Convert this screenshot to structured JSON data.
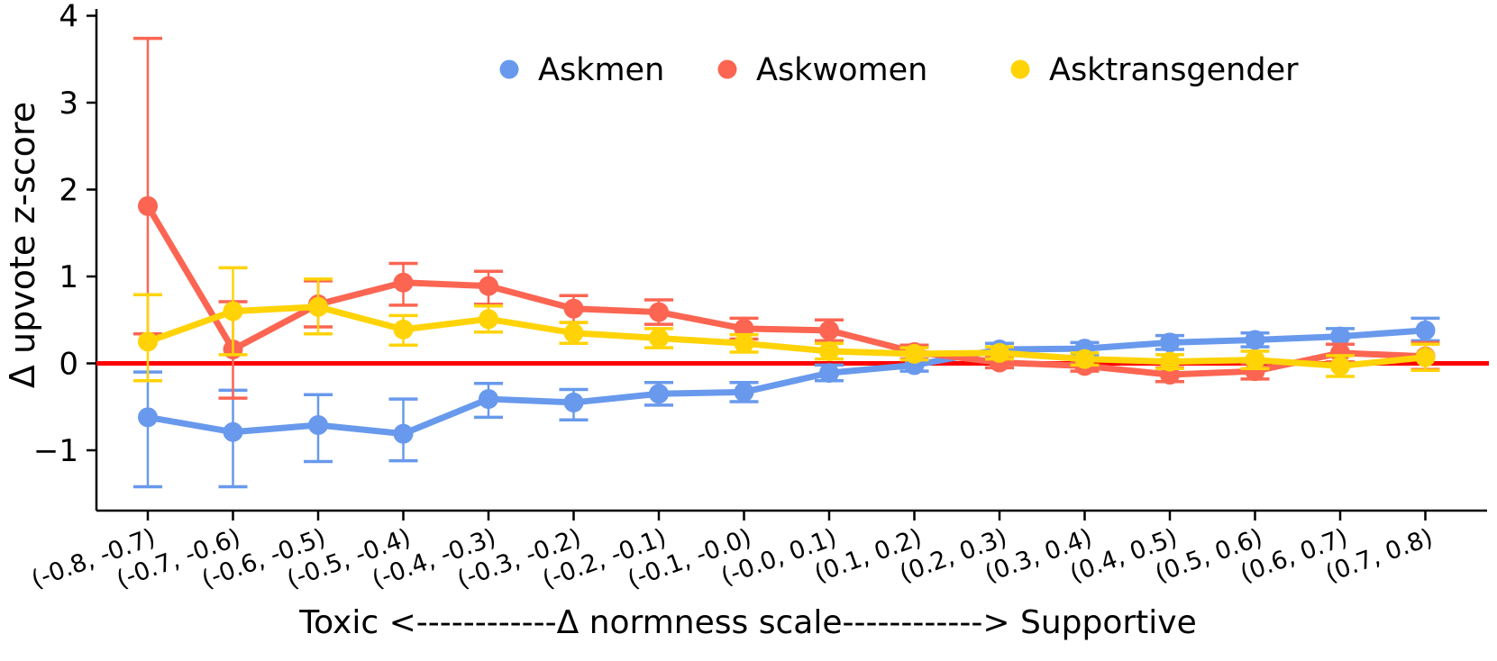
{
  "figure": {
    "ylabel": "Δ upvote z-score",
    "xlabel_composite": "Toxic <------------Δ normness scale------------> Supportive",
    "zero_line_color": "#ff0000",
    "axis_color": "#000000",
    "background": "#ffffff"
  },
  "legend": {
    "position": "top",
    "items": [
      {
        "label": "Askmen",
        "color": "#6899EC",
        "marker": "circle-icon"
      },
      {
        "label": "Askwomen",
        "color": "#FB6552",
        "marker": "circle-icon"
      },
      {
        "label": "Asktransgender",
        "color": "#FFD306",
        "marker": "circle-icon"
      }
    ]
  },
  "chart_data": {
    "type": "line",
    "title": "",
    "xlabel": "Toxic <------------Δ normness scale------------> Supportive",
    "ylabel": "Δ upvote z-score",
    "x_axis_left_anchor": "Toxic",
    "x_axis_right_anchor": "Supportive",
    "ylim": [
      -1.95,
      4.1
    ],
    "yticks": [
      4,
      3,
      2,
      1,
      0,
      -1
    ],
    "ytick_labels": [
      "4",
      "3",
      "2",
      "1",
      "0",
      "−1"
    ],
    "grid": false,
    "zero_line": 0,
    "legend_position": "top",
    "categories": [
      "(-0.8, -0.7)",
      "(-0.7, -0.6)",
      "(-0.6, -0.5)",
      "(-0.5, -0.4)",
      "(-0.4, -0.3)",
      "(-0.3, -0.2)",
      "(-0.2, -0.1)",
      "(-0.1, -0.0)",
      "(-0.0, 0.1)",
      "(0.1, 0.2)",
      "(0.2, 0.3)",
      "(0.3, 0.4)",
      "(0.4, 0.5)",
      "(0.5, 0.6)",
      "(0.6, 0.7)",
      "(0.7, 0.8)"
    ],
    "series": [
      {
        "name": "Askmen",
        "color": "#6899EC",
        "values": [
          -0.62,
          -0.79,
          -0.71,
          -0.81,
          -0.41,
          -0.45,
          -0.35,
          -0.33,
          -0.11,
          -0.02,
          0.16,
          0.17,
          0.24,
          0.27,
          0.31,
          0.38
        ],
        "err_hi": [
          0.52,
          0.48,
          0.35,
          0.4,
          0.18,
          0.15,
          0.13,
          0.11,
          0.09,
          0.07,
          0.07,
          0.07,
          0.08,
          0.08,
          0.09,
          0.14
        ],
        "err_lo": [
          0.8,
          0.63,
          0.42,
          0.31,
          0.21,
          0.2,
          0.13,
          0.11,
          0.09,
          0.07,
          0.07,
          0.07,
          0.08,
          0.08,
          0.09,
          0.12
        ]
      },
      {
        "name": "Askwomen",
        "color": "#FB6552",
        "values": [
          1.81,
          0.16,
          0.68,
          0.93,
          0.89,
          0.63,
          0.59,
          0.4,
          0.38,
          0.13,
          0.01,
          -0.03,
          -0.13,
          -0.09,
          0.12,
          0.08
        ],
        "err_hi": [
          1.93,
          0.55,
          0.27,
          0.22,
          0.17,
          0.15,
          0.14,
          0.12,
          0.12,
          0.08,
          0.06,
          0.06,
          0.08,
          0.09,
          0.1,
          0.16
        ],
        "err_lo": [
          1.47,
          0.56,
          0.26,
          0.26,
          0.21,
          0.16,
          0.14,
          0.12,
          0.12,
          0.08,
          0.06,
          0.06,
          0.08,
          0.09,
          0.1,
          0.15
        ]
      },
      {
        "name": "Asktransgender",
        "color": "#FFD306",
        "values": [
          0.25,
          0.6,
          0.65,
          0.39,
          0.51,
          0.35,
          0.29,
          0.23,
          0.14,
          0.11,
          0.12,
          0.05,
          0.02,
          0.04,
          -0.03,
          0.07
        ],
        "err_hi": [
          0.54,
          0.5,
          0.32,
          0.16,
          0.15,
          0.12,
          0.11,
          0.1,
          0.09,
          0.07,
          0.07,
          0.07,
          0.08,
          0.1,
          0.12,
          0.15
        ],
        "err_lo": [
          0.45,
          0.5,
          0.31,
          0.18,
          0.15,
          0.12,
          0.11,
          0.1,
          0.09,
          0.07,
          0.07,
          0.07,
          0.08,
          0.1,
          0.12,
          0.15
        ]
      }
    ]
  }
}
